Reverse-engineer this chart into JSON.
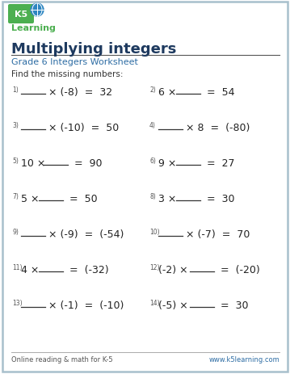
{
  "title": "Multiplying integers",
  "subtitle": "Grade 6 Integers Worksheet",
  "instruction": "Find the missing numbers:",
  "footer_left": "Online reading & math for K-5",
  "footer_right": "www.k5learning.com",
  "title_color": "#1e3a5f",
  "subtitle_color": "#2e6da4",
  "text_color": "#333333",
  "border_color": "#a8c0cc",
  "problems": [
    {
      "num": "1)",
      "pre": "",
      "mid": " × (-8)  =  32",
      "has_blank_first": true
    },
    {
      "num": "2)",
      "pre": "6 × ",
      "mid": "  =  54",
      "has_blank_first": false
    },
    {
      "num": "3)",
      "pre": "",
      "mid": " × (-10)  =  50",
      "has_blank_first": true
    },
    {
      "num": "4)",
      "pre": "",
      "mid": " × 8  =  (-80)",
      "has_blank_first": true
    },
    {
      "num": "5)",
      "pre": "10 × ",
      "mid": "  =  90",
      "has_blank_first": false
    },
    {
      "num": "6)",
      "pre": "9 × ",
      "mid": "  =  27",
      "has_blank_first": false
    },
    {
      "num": "7)",
      "pre": "5 × ",
      "mid": "  =  50",
      "has_blank_first": false
    },
    {
      "num": "8)",
      "pre": "3 × ",
      "mid": "  =  30",
      "has_blank_first": false
    },
    {
      "num": "9)",
      "pre": "",
      "mid": " × (-9)  =  (-54)",
      "has_blank_first": true
    },
    {
      "num": "10)",
      "pre": "",
      "mid": " × (-7)  =  70",
      "has_blank_first": true
    },
    {
      "num": "11)",
      "pre": "4 × ",
      "mid": "  =  (-32)",
      "has_blank_first": false
    },
    {
      "num": "12)",
      "pre": "(-2) × ",
      "mid": "  =  (-20)",
      "has_blank_first": false
    },
    {
      "num": "13)",
      "pre": "",
      "mid": " × (-1)  =  (-10)",
      "has_blank_first": true
    },
    {
      "num": "14)",
      "pre": "(-5) × ",
      "mid": "  =  30",
      "has_blank_first": false
    }
  ],
  "col1_indices": [
    0,
    2,
    4,
    6,
    8,
    10,
    12
  ],
  "col2_indices": [
    1,
    3,
    5,
    7,
    9,
    11,
    13
  ],
  "logo_bg": "#2e6da4",
  "logo_k5_color": "#ffffff",
  "logo_green": "#5aaa3c"
}
